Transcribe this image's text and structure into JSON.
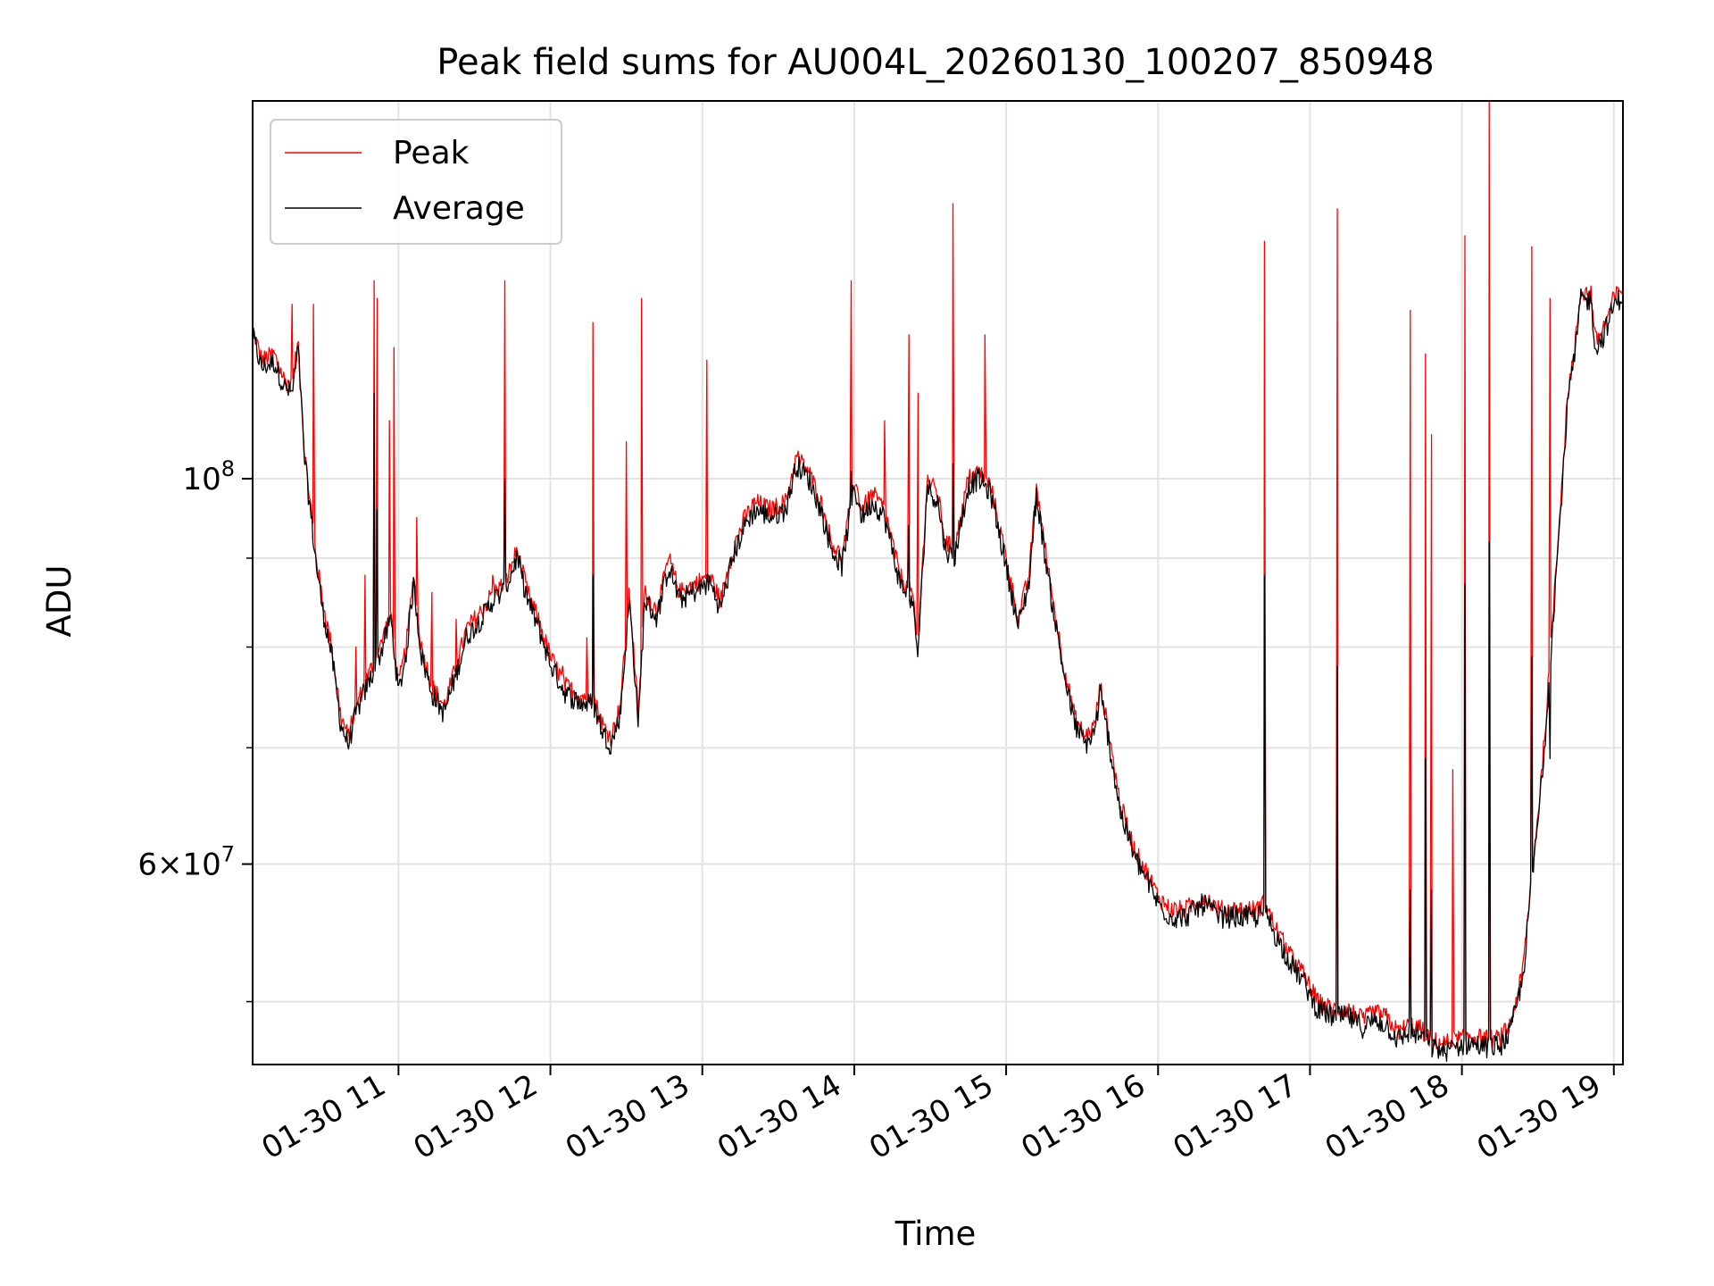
{
  "chart_data": {
    "type": "line",
    "title": "Peak field sums for AU004L_20260130_100207_850948",
    "xlabel": "Time",
    "ylabel": "ADU",
    "yscale": "log",
    "ylim": [
      46000000,
      165000000
    ],
    "xlim_hours": [
      10.04,
      19.06
    ],
    "grid": true,
    "legend_position": "top-left",
    "x_ticks": [
      {
        "hour": 11,
        "label": "01-30 11"
      },
      {
        "hour": 12,
        "label": "01-30 12"
      },
      {
        "hour": 13,
        "label": "01-30 13"
      },
      {
        "hour": 14,
        "label": "01-30 14"
      },
      {
        "hour": 15,
        "label": "01-30 15"
      },
      {
        "hour": 16,
        "label": "01-30 16"
      },
      {
        "hour": 17,
        "label": "01-30 17"
      },
      {
        "hour": 18,
        "label": "01-30 18"
      },
      {
        "hour": 19,
        "label": "01-30 19"
      }
    ],
    "y_major_ticks": [
      {
        "value": 100000000,
        "base": "10",
        "exp": "8"
      },
      {
        "value": 60000000,
        "mant": "6",
        "base": "10",
        "exp": "7"
      }
    ],
    "y_minor_ticks": [
      50000000,
      70000000,
      80000000,
      90000000
    ],
    "series": [
      {
        "name": "Peak",
        "color": "#ff0000",
        "baseline": [
          [
            10.04,
            122000000
          ],
          [
            10.1,
            117000000
          ],
          [
            10.18,
            118000000
          ],
          [
            10.25,
            114000000
          ],
          [
            10.3,
            113000000
          ],
          [
            10.34,
            120000000
          ],
          [
            10.38,
            104000000
          ],
          [
            10.46,
            90000000
          ],
          [
            10.5,
            85000000
          ],
          [
            10.56,
            80000000
          ],
          [
            10.62,
            73000000
          ],
          [
            10.67,
            71000000
          ],
          [
            10.72,
            74000000
          ],
          [
            10.8,
            77000000
          ],
          [
            10.88,
            80000000
          ],
          [
            10.95,
            84000000
          ],
          [
            11.0,
            76000000
          ],
          [
            11.05,
            80000000
          ],
          [
            11.1,
            88000000
          ],
          [
            11.15,
            80000000
          ],
          [
            11.22,
            76000000
          ],
          [
            11.3,
            74000000
          ],
          [
            11.38,
            78000000
          ],
          [
            11.45,
            82000000
          ],
          [
            11.55,
            84000000
          ],
          [
            11.62,
            86000000
          ],
          [
            11.7,
            87000000
          ],
          [
            11.78,
            91000000
          ],
          [
            11.85,
            86000000
          ],
          [
            11.92,
            83000000
          ],
          [
            12.0,
            79000000
          ],
          [
            12.1,
            76000000
          ],
          [
            12.2,
            75000000
          ],
          [
            12.28,
            75000000
          ],
          [
            12.35,
            72000000
          ],
          [
            12.4,
            71000000
          ],
          [
            12.46,
            74000000
          ],
          [
            12.52,
            86000000
          ],
          [
            12.58,
            73000000
          ],
          [
            12.62,
            86000000
          ],
          [
            12.7,
            84000000
          ],
          [
            12.78,
            90000000
          ],
          [
            12.85,
            86000000
          ],
          [
            12.95,
            87000000
          ],
          [
            13.05,
            88000000
          ],
          [
            13.12,
            85000000
          ],
          [
            13.2,
            91000000
          ],
          [
            13.28,
            95000000
          ],
          [
            13.35,
            97000000
          ],
          [
            13.45,
            96000000
          ],
          [
            13.55,
            97000000
          ],
          [
            13.62,
            103000000
          ],
          [
            13.7,
            101000000
          ],
          [
            13.78,
            97000000
          ],
          [
            13.85,
            92000000
          ],
          [
            13.92,
            90000000
          ],
          [
            14.0,
            100000000
          ],
          [
            14.05,
            96000000
          ],
          [
            14.12,
            98000000
          ],
          [
            14.2,
            96000000
          ],
          [
            14.3,
            88000000
          ],
          [
            14.38,
            86000000
          ],
          [
            14.42,
            80000000
          ],
          [
            14.48,
            100000000
          ],
          [
            14.55,
            98000000
          ],
          [
            14.6,
            92000000
          ],
          [
            14.66,
            91000000
          ],
          [
            14.75,
            100000000
          ],
          [
            14.82,
            101000000
          ],
          [
            14.9,
            99000000
          ],
          [
            15.0,
            90000000
          ],
          [
            15.08,
            83000000
          ],
          [
            15.15,
            88000000
          ],
          [
            15.2,
            99000000
          ],
          [
            15.25,
            92000000
          ],
          [
            15.3,
            86000000
          ],
          [
            15.38,
            78000000
          ],
          [
            15.45,
            73000000
          ],
          [
            15.52,
            71000000
          ],
          [
            15.58,
            72000000
          ],
          [
            15.62,
            76000000
          ],
          [
            15.68,
            71000000
          ],
          [
            15.75,
            65000000
          ],
          [
            15.8,
            63000000
          ],
          [
            15.85,
            61000000
          ],
          [
            15.92,
            59500000
          ],
          [
            16.0,
            57500000
          ],
          [
            16.08,
            56500000
          ],
          [
            16.18,
            56500000
          ],
          [
            16.3,
            57500000
          ],
          [
            16.4,
            56500000
          ],
          [
            16.55,
            56500000
          ],
          [
            16.65,
            56500000
          ],
          [
            16.7,
            57000000
          ],
          [
            16.78,
            55000000
          ],
          [
            16.88,
            53000000
          ],
          [
            16.95,
            52000000
          ],
          [
            17.05,
            50000000
          ],
          [
            17.15,
            49500000
          ],
          [
            17.25,
            49500000
          ],
          [
            17.35,
            48800000
          ],
          [
            17.42,
            49300000
          ],
          [
            17.5,
            49000000
          ],
          [
            17.58,
            48000000
          ],
          [
            17.65,
            48500000
          ],
          [
            17.72,
            48300000
          ],
          [
            17.8,
            47500000
          ],
          [
            17.88,
            47300000
          ],
          [
            17.95,
            47500000
          ],
          [
            18.05,
            47800000
          ],
          [
            18.15,
            47600000
          ],
          [
            18.25,
            47600000
          ],
          [
            18.32,
            48500000
          ],
          [
            18.4,
            52000000
          ],
          [
            18.45,
            58000000
          ],
          [
            18.5,
            64000000
          ],
          [
            18.55,
            72000000
          ],
          [
            18.6,
            84000000
          ],
          [
            18.66,
            100000000
          ],
          [
            18.7,
            113000000
          ],
          [
            18.74,
            118000000
          ],
          [
            18.78,
            128000000
          ],
          [
            18.85,
            128000000
          ],
          [
            18.88,
            120000000
          ],
          [
            18.93,
            122000000
          ],
          [
            19.0,
            127000000
          ],
          [
            19.06,
            129000000
          ]
        ],
        "spikes": [
          [
            10.3,
            126000000
          ],
          [
            10.44,
            126000000
          ],
          [
            10.72,
            80000000
          ],
          [
            10.78,
            88000000
          ],
          [
            10.84,
            130000000
          ],
          [
            10.86,
            127000000
          ],
          [
            10.94,
            108000000
          ],
          [
            10.97,
            119000000
          ],
          [
            11.12,
            95000000
          ],
          [
            11.22,
            86000000
          ],
          [
            11.38,
            83000000
          ],
          [
            11.62,
            88000000
          ],
          [
            11.7,
            130000000
          ],
          [
            12.08,
            78000000
          ],
          [
            12.24,
            81000000
          ],
          [
            12.28,
            123000000
          ],
          [
            12.5,
            105000000
          ],
          [
            12.6,
            127000000
          ],
          [
            13.03,
            117000000
          ],
          [
            13.98,
            130000000
          ],
          [
            14.2,
            108000000
          ],
          [
            14.36,
            121000000
          ],
          [
            14.42,
            112000000
          ],
          [
            14.65,
            144000000
          ],
          [
            14.86,
            121000000
          ],
          [
            16.7,
            137000000
          ],
          [
            17.18,
            143000000
          ],
          [
            17.66,
            125000000
          ],
          [
            17.76,
            118000000
          ],
          [
            17.8,
            106000000
          ],
          [
            17.94,
            68000000
          ],
          [
            18.02,
            138000000
          ],
          [
            18.18,
            165000000
          ],
          [
            18.46,
            136000000
          ],
          [
            18.58,
            127000000
          ]
        ]
      },
      {
        "name": "Average",
        "color": "#000000",
        "ratio": 0.99,
        "spikes": [
          [
            10.84,
            112000000
          ],
          [
            10.86,
            96000000
          ],
          [
            11.7,
            100000000
          ],
          [
            12.28,
            88000000
          ],
          [
            13.03,
            88000000
          ],
          [
            13.98,
            101000000
          ],
          [
            14.36,
            94000000
          ],
          [
            14.65,
            102000000
          ],
          [
            16.7,
            88000000
          ],
          [
            17.18,
            78000000
          ],
          [
            17.66,
            58000000
          ],
          [
            17.76,
            69000000
          ],
          [
            17.8,
            58000000
          ],
          [
            18.02,
            87000000
          ],
          [
            18.18,
            92000000
          ],
          [
            18.46,
            79000000
          ],
          [
            18.58,
            69000000
          ]
        ]
      }
    ]
  }
}
